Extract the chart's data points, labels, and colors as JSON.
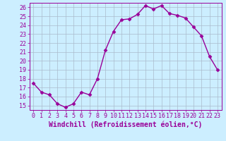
{
  "x": [
    0,
    1,
    2,
    3,
    4,
    5,
    6,
    7,
    8,
    9,
    10,
    11,
    12,
    13,
    14,
    15,
    16,
    17,
    18,
    19,
    20,
    21,
    22,
    23
  ],
  "y": [
    17.5,
    16.5,
    16.2,
    15.2,
    14.8,
    15.2,
    16.5,
    16.2,
    18.0,
    21.2,
    23.3,
    24.6,
    24.7,
    25.2,
    26.2,
    25.8,
    26.2,
    25.3,
    25.1,
    24.8,
    23.8,
    22.8,
    20.5,
    19.0
  ],
  "line_color": "#990099",
  "marker": "D",
  "markersize": 2.5,
  "linewidth": 1.0,
  "xlabel": "Windchill (Refroidissement éolien,°C)",
  "xlabel_fontsize": 7,
  "ylim": [
    14.5,
    26.5
  ],
  "yticks": [
    15,
    16,
    17,
    18,
    19,
    20,
    21,
    22,
    23,
    24,
    25,
    26
  ],
  "xticks": [
    0,
    1,
    2,
    3,
    4,
    5,
    6,
    7,
    8,
    9,
    10,
    11,
    12,
    13,
    14,
    15,
    16,
    17,
    18,
    19,
    20,
    21,
    22,
    23
  ],
  "bg_color": "#cceeff",
  "grid_color": "#aabbcc",
  "tick_fontsize": 6,
  "ylabel_fontsize": 6
}
